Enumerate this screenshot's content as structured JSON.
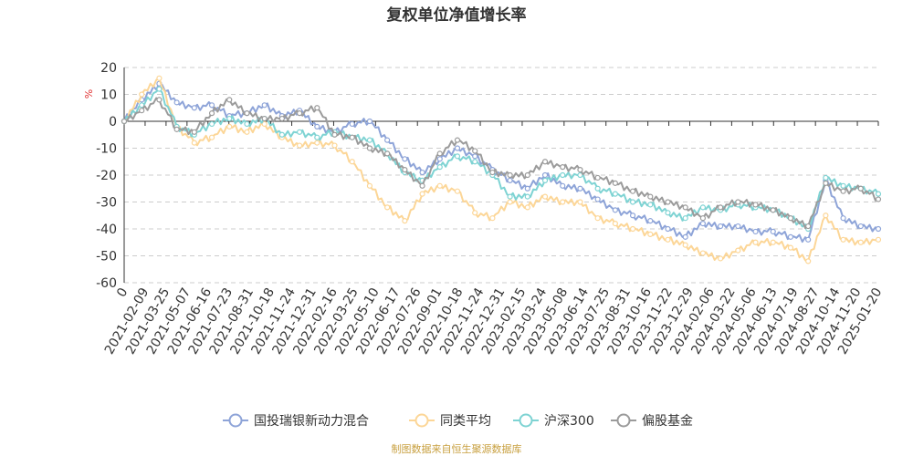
{
  "chart_data": {
    "type": "line",
    "title": "复权单位净值增长率",
    "y_unit": "%",
    "ylim": [
      -60,
      20
    ],
    "y_ticks": [
      20,
      10,
      0,
      -10,
      -20,
      -30,
      -40,
      -50,
      -60
    ],
    "x_tick_labels": [
      "0",
      "2021-02-09",
      "2021-03-25",
      "2021-05-07",
      "2021-06-16",
      "2021-07-23",
      "2021-08-31",
      "2021-10-18",
      "2021-11-24",
      "2021-12-31",
      "2022-02-16",
      "2022-03-25",
      "2022-05-10",
      "2022-06-17",
      "2022-07-26",
      "2022-09-01",
      "2022-10-18",
      "2022-11-24",
      "2022-12-31",
      "2023-02-15",
      "2023-03-24",
      "2023-05-08",
      "2023-06-14",
      "2023-07-25",
      "2023-08-31",
      "2023-10-16",
      "2023-11-22",
      "2023-12-29",
      "2024-02-06",
      "2024-03-22",
      "2024-05-06",
      "2024-06-13",
      "2024-07-19",
      "2024-08-27",
      "2024-10-14",
      "2024-11-20",
      "2025-01-20"
    ],
    "grid": "horizontal dashed",
    "legend_position": "bottom",
    "series": [
      {
        "name": "国投瑞银新动力混合",
        "color": "#8ea4d8",
        "values": [
          0,
          8,
          14,
          7,
          5,
          6,
          2,
          3,
          6,
          2,
          4,
          -2,
          -4,
          -1,
          0,
          -7,
          -14,
          -19,
          -14,
          -10,
          -13,
          -18,
          -22,
          -25,
          -20,
          -24,
          -25,
          -29,
          -33,
          -35,
          -37,
          -40,
          -43,
          -38,
          -39,
          -39,
          -41,
          -41,
          -43,
          -44,
          -22,
          -36,
          -39,
          -40
        ]
      },
      {
        "name": "同类平均",
        "color": "#fcd697",
        "values": [
          0,
          10,
          16,
          -2,
          -8,
          -6,
          -2,
          -4,
          -1,
          -6,
          -9,
          -8,
          -9,
          -15,
          -24,
          -32,
          -37,
          -27,
          -24,
          -26,
          -34,
          -36,
          -30,
          -32,
          -28,
          -30,
          -30,
          -36,
          -38,
          -40,
          -42,
          -44,
          -46,
          -49,
          -51,
          -48,
          -45,
          -45,
          -47,
          -52,
          -35,
          -44,
          -45,
          -44
        ]
      },
      {
        "name": "沪深300",
        "color": "#7ed3d3",
        "values": [
          0,
          6,
          12,
          -2,
          -5,
          -1,
          1,
          -1,
          1,
          -5,
          -4,
          -6,
          -4,
          -6,
          -7,
          -12,
          -19,
          -22,
          -17,
          -13,
          -15,
          -20,
          -28,
          -28,
          -22,
          -20,
          -20,
          -25,
          -27,
          -30,
          -31,
          -34,
          -36,
          -32,
          -33,
          -31,
          -32,
          -33,
          -36,
          -40,
          -21,
          -24,
          -25,
          -27
        ]
      },
      {
        "name": "偏股基金",
        "color": "#9b9b9b",
        "values": [
          0,
          4,
          8,
          -3,
          -4,
          3,
          8,
          3,
          1,
          1,
          3,
          5,
          -5,
          -6,
          -10,
          -12,
          -18,
          -24,
          -12,
          -7,
          -11,
          -19,
          -20,
          -20,
          -15,
          -17,
          -18,
          -21,
          -23,
          -26,
          -28,
          -30,
          -32,
          -36,
          -32,
          -30,
          -31,
          -33,
          -36,
          -39,
          -23,
          -26,
          -25,
          -29
        ]
      }
    ]
  },
  "source_note": "制图数据来自恒生聚源数据库"
}
